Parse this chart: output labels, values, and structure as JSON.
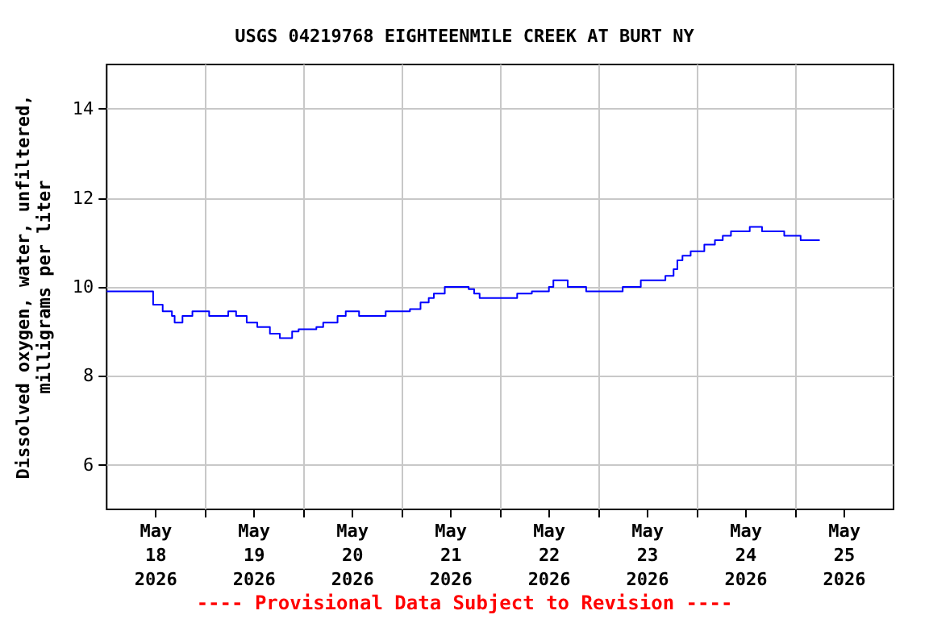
{
  "chart_data": {
    "type": "step",
    "title": "USGS 04219768 EIGHTEENMILE CREEK AT BURT NY",
    "ylabel": "Dissolved oxygen, water, unfiltered,\nmilligrams per liter",
    "annotations": [
      "---- Provisional Data Subject to Revision ----"
    ],
    "x": [
      "2026-05-17T12:00",
      "2026-05-17T20:45",
      "2026-05-17T23:20",
      "2026-05-18T01:40",
      "2026-05-18T03:55",
      "2026-05-18T04:35",
      "2026-05-18T06:30",
      "2026-05-18T08:55",
      "2026-05-18T13:00",
      "2026-05-18T17:40",
      "2026-05-18T19:35",
      "2026-05-18T22:10",
      "2026-05-19T00:45",
      "2026-05-19T03:50",
      "2026-05-19T06:15",
      "2026-05-19T09:15",
      "2026-05-19T10:50",
      "2026-05-19T15:10",
      "2026-05-19T16:50",
      "2026-05-19T20:20",
      "2026-05-19T22:20",
      "2026-05-20T01:35",
      "2026-05-20T08:05",
      "2026-05-20T14:00",
      "2026-05-20T16:35",
      "2026-05-20T18:35",
      "2026-05-20T19:50",
      "2026-05-20T22:30",
      "2026-05-21T04:20",
      "2026-05-21T05:40",
      "2026-05-21T07:00",
      "2026-05-21T16:10",
      "2026-05-21T19:45",
      "2026-05-21T23:55",
      "2026-05-22T01:00",
      "2026-05-22T04:30",
      "2026-05-22T09:00",
      "2026-05-22T17:55",
      "2026-05-22T22:20",
      "2026-05-23T04:20",
      "2026-05-23T06:20",
      "2026-05-23T07:15",
      "2026-05-23T08:30",
      "2026-05-23T10:30",
      "2026-05-23T13:50",
      "2026-05-23T16:25",
      "2026-05-23T18:20",
      "2026-05-23T20:20",
      "2026-05-24T00:55",
      "2026-05-24T03:55",
      "2026-05-24T09:20",
      "2026-05-24T13:20",
      "2026-05-24T18:00"
    ],
    "series": [
      {
        "color": "#0000ff",
        "values": [
          9.9,
          9.9,
          9.6,
          9.45,
          9.35,
          9.2,
          9.35,
          9.45,
          9.35,
          9.45,
          9.35,
          9.2,
          9.1,
          8.95,
          8.85,
          9.0,
          9.05,
          9.1,
          9.2,
          9.35,
          9.45,
          9.35,
          9.45,
          9.5,
          9.65,
          9.75,
          9.85,
          10.0,
          9.95,
          9.85,
          9.75,
          9.85,
          9.9,
          10.0,
          10.15,
          10.0,
          9.9,
          10.0,
          10.15,
          10.25,
          10.4,
          10.6,
          10.7,
          10.8,
          10.95,
          11.05,
          11.15,
          11.25,
          11.35,
          11.25,
          11.15,
          11.05,
          11.05
        ]
      }
    ],
    "xlim": [
      "2026-05-17T12:00",
      "2026-05-25T12:00"
    ],
    "xticks": [
      {
        "value": "2026-05-18",
        "label": "May\n18\n2026"
      },
      {
        "value": "2026-05-19",
        "label": "May\n19\n2026"
      },
      {
        "value": "2026-05-20",
        "label": "May\n20\n2026"
      },
      {
        "value": "2026-05-21",
        "label": "May\n21\n2026"
      },
      {
        "value": "2026-05-22",
        "label": "May\n22\n2026"
      },
      {
        "value": "2026-05-23",
        "label": "May\n23\n2026"
      },
      {
        "value": "2026-05-24",
        "label": "May\n24\n2026"
      },
      {
        "value": "2026-05-25",
        "label": "May\n25\n2026"
      },
      {
        "value": "2026-05-18T12:00",
        "label": null
      },
      {
        "value": "2026-05-19T12:00",
        "label": null
      },
      {
        "value": "2026-05-20T12:00",
        "label": null
      },
      {
        "value": "2026-05-21T12:00",
        "label": null
      },
      {
        "value": "2026-05-22T12:00",
        "label": null
      },
      {
        "value": "2026-05-23T12:00",
        "label": null
      },
      {
        "value": "2026-05-24T12:00",
        "label": null
      }
    ],
    "ylim": [
      5,
      15
    ],
    "yticks": [
      6,
      8,
      10,
      12,
      14
    ],
    "grid": true,
    "marker": "none",
    "line_style": "solid"
  }
}
